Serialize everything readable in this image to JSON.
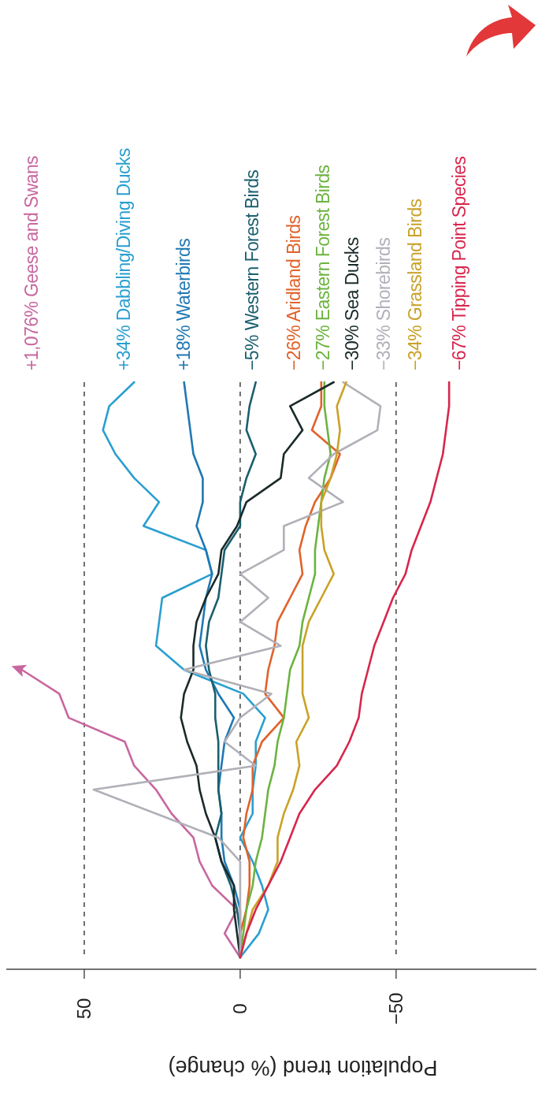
{
  "chart_data": {
    "type": "line",
    "orientation": "horizontal",
    "xlabel": "Population trend (% change)",
    "categories": [
      null,
      null,
      null,
      null,
      null,
      null,
      null,
      null,
      null,
      null,
      null,
      null,
      null,
      null,
      null,
      null,
      null,
      null,
      null,
      null,
      null,
      null,
      null,
      null,
      null
    ],
    "xlim": [
      75,
      -95
    ],
    "xticks": [
      50,
      0,
      {
        "value": -50,
        "label": "−50"
      }
    ],
    "grid": "x",
    "legend": false,
    "tick_labels": "x",
    "series": [
      {
        "name": "+1,076% Geese and Swans",
        "color": "#c8679f",
        "values": [
          null,
          null,
          null,
          null,
          null,
          null,
          null,
          null,
          null,
          null,
          null,
          null,
          70,
          58,
          55,
          37,
          34,
          27,
          22,
          15,
          13,
          9,
          1,
          5,
          0
        ]
      },
      {
        "name": "+34% Dabbling/Diving Ducks",
        "color": "#2a9fd0",
        "values": [
          34,
          42,
          44,
          40,
          34,
          26,
          31,
          11,
          9,
          25,
          26,
          27,
          18,
          -1,
          -8,
          -5,
          -5,
          -4,
          -4,
          0,
          -4,
          -7,
          -9,
          -6,
          0
        ]
      },
      {
        "name": "+18% Waterbirds",
        "color": "#1f78b4",
        "values": [
          18,
          17,
          16,
          15,
          12,
          12,
          14,
          11,
          9,
          11,
          12,
          13,
          11,
          7,
          2,
          5,
          6,
          7,
          6,
          6,
          5,
          2,
          0,
          0,
          0
        ]
      },
      {
        "name": "−5% Western Forest Birds",
        "color": "#1a5f6e",
        "values": [
          -5,
          -3,
          -2,
          -5,
          -2,
          0,
          0,
          5,
          6,
          7,
          10,
          11,
          10,
          8,
          8,
          7,
          7,
          7,
          6,
          8,
          6,
          3,
          1,
          0,
          0
        ]
      },
      {
        "name": "−26% Aridland Birds",
        "color": "#e0622a",
        "values": [
          -26,
          -26,
          -23,
          -32,
          -29,
          -24,
          -21,
          -19,
          -20,
          -16,
          -12,
          -11,
          -9,
          -8,
          -14,
          -7,
          -4,
          -4,
          -2,
          -1,
          -3,
          -3,
          -2,
          0,
          0
        ]
      },
      {
        "name": "−27% Eastern Forest Birds",
        "color": "#6cb33f",
        "values": [
          -27,
          -27,
          -28,
          -29,
          -27,
          -26,
          -25,
          -24,
          -24,
          -22,
          -20,
          -19,
          -16,
          -15,
          -14,
          -12,
          -11,
          -9,
          -8,
          -7,
          -5,
          -4,
          -2,
          -1,
          0
        ]
      },
      {
        "name": "−30% Sea Ducks",
        "color": "#1a2a2a",
        "values": [
          -30,
          -16,
          -20,
          -14,
          -13,
          -2,
          1,
          6,
          7,
          11,
          14,
          15,
          15,
          18,
          19,
          17,
          14,
          13,
          11,
          8,
          6,
          2,
          2,
          1,
          0
        ]
      },
      {
        "name": "−33% Shorebirds",
        "color": "#b0b0b8",
        "values": [
          -33,
          -45,
          -44,
          -30,
          -22,
          -33,
          -14,
          -14,
          0,
          -9,
          0,
          -13,
          18,
          -10,
          0,
          5,
          -5,
          47,
          27,
          7,
          0,
          0,
          0,
          0,
          0
        ]
      },
      {
        "name": "−34% Grassland Birds",
        "color": "#c9a227",
        "values": [
          -34,
          -31,
          -32,
          -31,
          -29,
          -26,
          -26,
          -27,
          -30,
          -26,
          -22,
          -20,
          -20,
          -20,
          -22,
          -18,
          -19,
          -17,
          -14,
          -12,
          -12,
          -9,
          -4,
          -2,
          0
        ]
      },
      {
        "name": "−67% Tipping Point Species",
        "color": "#d8264d",
        "values": [
          -67,
          -67,
          -66,
          -65,
          -63,
          -61,
          -58,
          -55,
          -53,
          -49,
          -46,
          -43,
          -41,
          -39,
          -38,
          -35,
          -31,
          -24,
          -19,
          -16,
          -13,
          -9,
          -5,
          -2,
          0
        ]
      }
    ]
  }
}
